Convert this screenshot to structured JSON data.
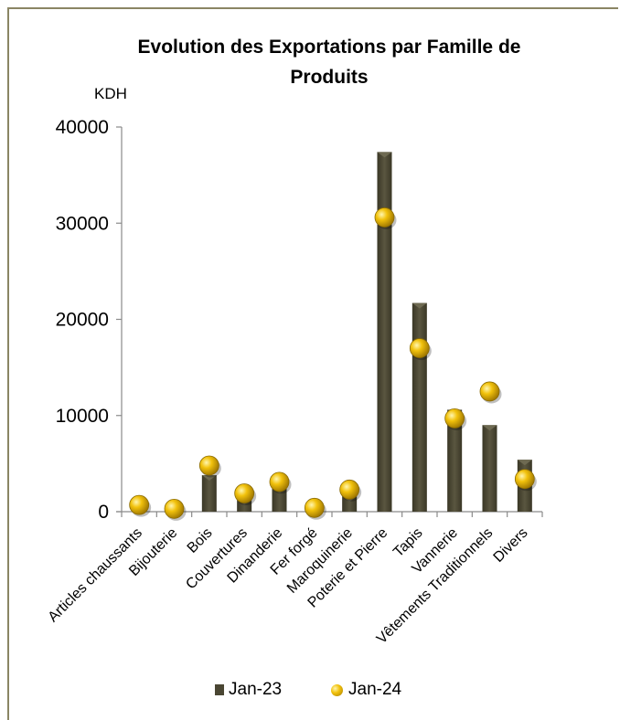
{
  "chart_data": {
    "type": "bar",
    "title": "Evolution des Exportations  par Famille de Produits",
    "ylabel": "KDH",
    "ylim": [
      0,
      40000
    ],
    "yticks": [
      "0",
      "10000",
      "20000",
      "30000",
      "40000"
    ],
    "categories": [
      "Articles chaussants",
      "Bijouterie",
      "Bois",
      "Couvertures",
      "Dinanderie",
      "Fer forgé",
      "Maroquinerie",
      "Poterie et Pierre",
      "Tapis",
      "Vannerie",
      "Vêtements Traditionnels",
      "Divers"
    ],
    "series": [
      {
        "name": "Jan-23",
        "kind": "bar",
        "color": "#4a4633",
        "values": [
          400,
          200,
          3800,
          1300,
          2500,
          200,
          1600,
          37400,
          21700,
          10600,
          9000,
          5400
        ]
      },
      {
        "name": "Jan-24",
        "kind": "marker",
        "color": "#f2c20c",
        "values": [
          700,
          300,
          4800,
          1900,
          3100,
          400,
          2300,
          30600,
          17000,
          9700,
          12500,
          3400
        ]
      }
    ],
    "legend_position": "bottom",
    "grid": false
  }
}
